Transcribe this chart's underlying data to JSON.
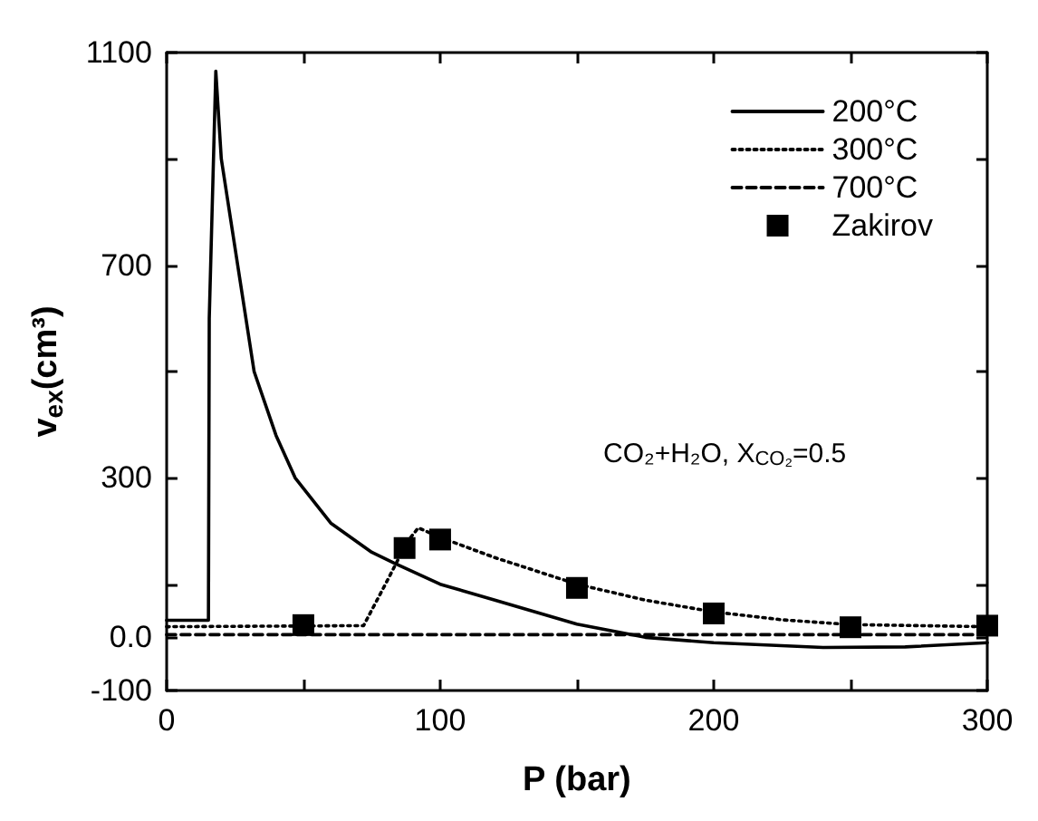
{
  "chart_data": {
    "type": "line",
    "xlabel": "P (bar)",
    "ylabel": "v$_{ex}$(cm³)",
    "annotations": [
      "CO₂+H₂O, X$_{CO₂}$=0.5"
    ],
    "xlim": [
      0,
      300
    ],
    "ylim": [
      -100,
      1100
    ],
    "xticks": [
      0,
      {
        "value": 50,
        "label": null
      },
      100,
      {
        "value": 150,
        "label": null
      },
      200,
      {
        "value": 250,
        "label": null
      },
      300
    ],
    "yticks": [
      -100,
      {
        "value": 0,
        "label": "0.0"
      },
      {
        "value": 100,
        "label": null
      },
      300,
      {
        "value": 500,
        "label": null
      },
      700,
      {
        "value": 900,
        "label": null
      },
      1100
    ],
    "legend": "top right",
    "grid": false,
    "series": [
      {
        "name": "200°C",
        "line_style": "solid",
        "marker": "none",
        "color": "#000000",
        "x": [
          0,
          15.3,
          15.6,
          18,
          20,
          26,
          32,
          40,
          47,
          60,
          75,
          83,
          100,
          120,
          150,
          175,
          200,
          240,
          270,
          300
        ],
        "values": [
          32,
          32,
          600,
          1065,
          900,
          700,
          500,
          380,
          300,
          215,
          160,
          140,
          100,
          70,
          25,
          0,
          -10,
          -19,
          -18,
          -10
        ]
      },
      {
        "name": "300°C",
        "line_style": "dotted",
        "marker": "none",
        "color": "#000000",
        "x": [
          0,
          72,
          80,
          88,
          92,
          100,
          120,
          150,
          175,
          200,
          225,
          250,
          300
        ],
        "values": [
          20,
          22,
          100,
          180,
          206,
          188,
          150,
          100,
          70,
          48,
          33,
          24,
          20
        ]
      },
      {
        "name": "700°C",
        "line_style": "dashed",
        "marker": "none",
        "color": "#000000",
        "x": [
          0,
          300
        ],
        "values": [
          5,
          5
        ]
      },
      {
        "name": "Zakirov",
        "type": "scatter",
        "marker": "square",
        "color": "#000000",
        "x": [
          50,
          87,
          100,
          150,
          200,
          250,
          300
        ],
        "values": [
          23,
          168,
          184,
          93,
          45,
          19,
          22
        ]
      }
    ]
  }
}
